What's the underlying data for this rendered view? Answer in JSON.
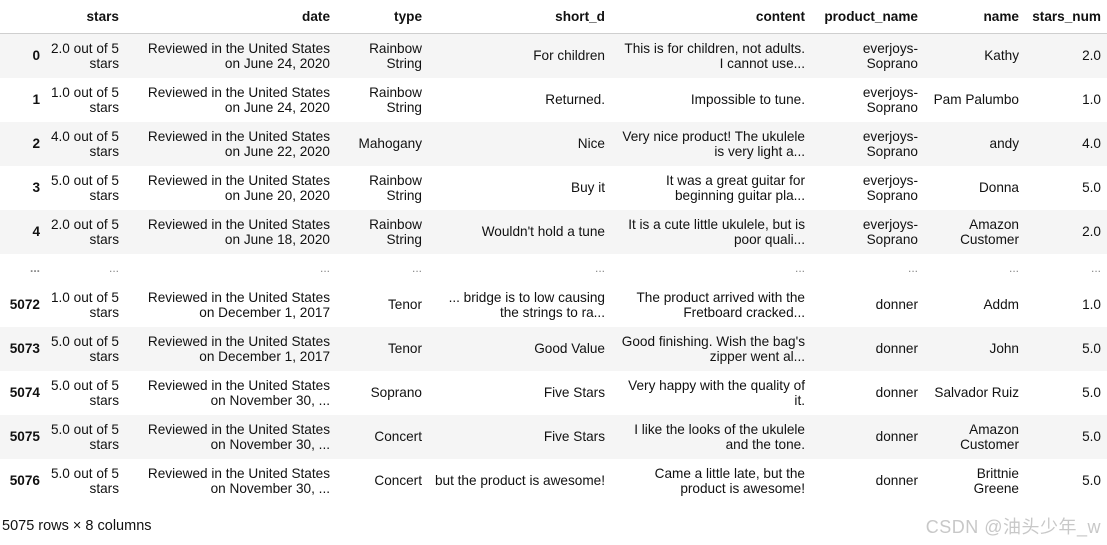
{
  "table": {
    "columns": [
      "stars",
      "date",
      "type",
      "short_d",
      "content",
      "product_name",
      "name",
      "stars_num"
    ],
    "rows": [
      {
        "index": "0",
        "cells": [
          "2.0 out of 5 stars",
          "Reviewed in the United States on June 24, 2020",
          "Rainbow String",
          "For children",
          "This is for children, not adults. I cannot use...",
          "everjoys-Soprano",
          "Kathy",
          "2.0"
        ]
      },
      {
        "index": "1",
        "cells": [
          "1.0 out of 5 stars",
          "Reviewed in the United States on June 24, 2020",
          "Rainbow String",
          "Returned.",
          "Impossible to tune.",
          "everjoys-Soprano",
          "Pam Palumbo",
          "1.0"
        ]
      },
      {
        "index": "2",
        "cells": [
          "4.0 out of 5 stars",
          "Reviewed in the United States on June 22, 2020",
          "Mahogany",
          "Nice",
          "Very nice product! The ukulele is very light a...",
          "everjoys-Soprano",
          "andy",
          "4.0"
        ]
      },
      {
        "index": "3",
        "cells": [
          "5.0 out of 5 stars",
          "Reviewed in the United States on June 20, 2020",
          "Rainbow String",
          "Buy it",
          "It was a great guitar for beginning guitar pla...",
          "everjoys-Soprano",
          "Donna",
          "5.0"
        ]
      },
      {
        "index": "4",
        "cells": [
          "2.0 out of 5 stars",
          "Reviewed in the United States on June 18, 2020",
          "Rainbow String",
          "Wouldn't hold a tune",
          "It is a cute little ukulele, but is poor quali...",
          "everjoys-Soprano",
          "Amazon Customer",
          "2.0"
        ]
      },
      {
        "index": "...",
        "cells": [
          "...",
          "...",
          "...",
          "...",
          "...",
          "...",
          "...",
          "..."
        ]
      },
      {
        "index": "5072",
        "cells": [
          "1.0 out of 5 stars",
          "Reviewed in the United States on December 1, 2017",
          "Tenor",
          "... bridge is to low causing the strings to ra...",
          "The product arrived with the Fretboard cracked...",
          "donner",
          "Addm",
          "1.0"
        ]
      },
      {
        "index": "5073",
        "cells": [
          "5.0 out of 5 stars",
          "Reviewed in the United States on December 1, 2017",
          "Tenor",
          "Good Value",
          "Good finishing. Wish the bag's zipper went al...",
          "donner",
          "John",
          "5.0"
        ]
      },
      {
        "index": "5074",
        "cells": [
          "5.0 out of 5 stars",
          "Reviewed in the United States on November 30, ...",
          "Soprano",
          "Five Stars",
          "Very happy with the quality of it.",
          "donner",
          "Salvador Ruiz",
          "5.0"
        ]
      },
      {
        "index": "5075",
        "cells": [
          "5.0 out of 5 stars",
          "Reviewed in the United States on November 30, ...",
          "Concert",
          "Five Stars",
          "I like the looks of the ukulele and the tone.",
          "donner",
          "Amazon Customer",
          "5.0"
        ]
      },
      {
        "index": "5076",
        "cells": [
          "5.0 out of 5 stars",
          "Reviewed in the United States on November 30, ...",
          "Concert",
          "but the product is awesome!",
          "Came a little late, but the product is awesome!",
          "donner",
          "Brittnie Greene",
          "5.0"
        ]
      }
    ]
  },
  "shape_text": "5075 rows × 8 columns",
  "watermark": "CSDN @油头少年_w"
}
